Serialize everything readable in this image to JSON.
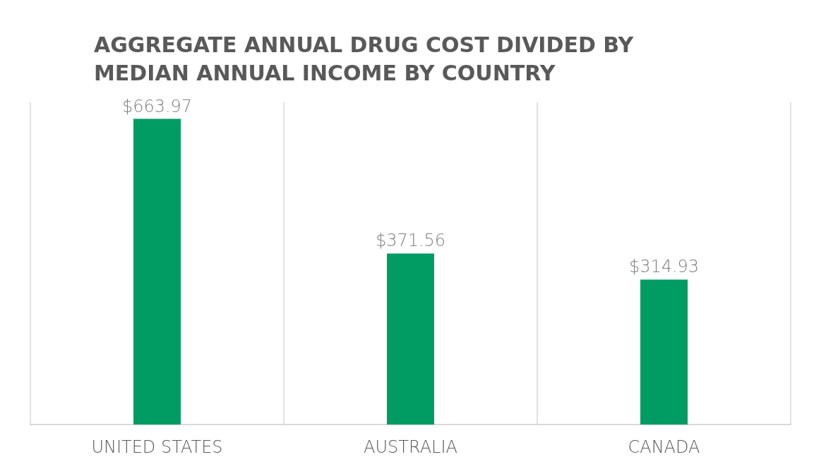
{
  "chart_data": {
    "type": "bar",
    "title": "AGGREGATE ANNUAL DRUG COST DIVIDED BY MEDIAN ANNUAL INCOME BY COUNTRY",
    "categories": [
      "UNITED STATES",
      "AUSTRALIA",
      "CANADA"
    ],
    "values": [
      663.97,
      371.56,
      314.93
    ],
    "value_labels": [
      "$663.97",
      "$371.56",
      "$314.93"
    ],
    "color": "#009c64",
    "grid": "x"
  }
}
